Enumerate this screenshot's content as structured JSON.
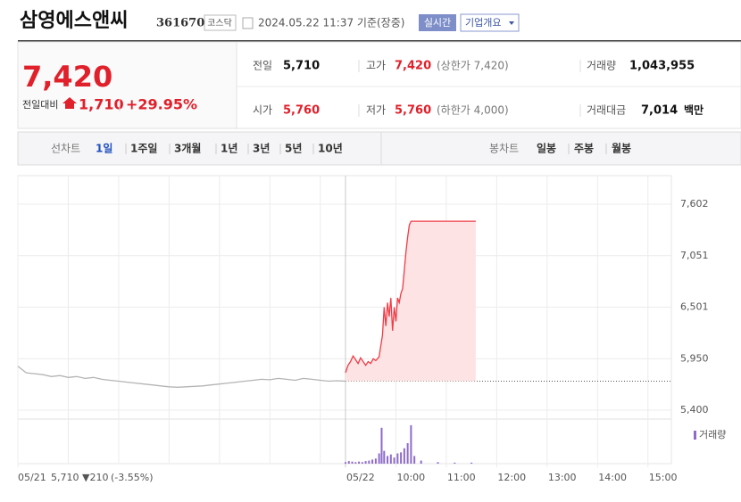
{
  "header": {
    "name": "삼영에스앤씨",
    "code": "361670",
    "market": "코스닥",
    "time": "2024.05.22 11:37 기준(장중)",
    "realtime": "실시간",
    "company": "기업개요"
  },
  "quote": {
    "price": "7,420",
    "change_label": "전일대비",
    "change": "1,710",
    "rate": "+29.95%",
    "items": [
      {
        "label": "전일",
        "value": "5,710"
      },
      {
        "label": "고가",
        "value": "7,420",
        "note": "(상한가 7,420)"
      },
      {
        "label": "거래량",
        "value": "1,043,955"
      },
      {
        "label": "시가",
        "value": "5,760"
      },
      {
        "label": "저가",
        "value": "5,760",
        "note": "(하한가 4,000)"
      },
      {
        "label": "거래대금",
        "value": "7,014",
        "unit": "백만"
      }
    ]
  },
  "tabs": {
    "line_label": "선차트",
    "line": [
      "1일",
      "1주일",
      "3개월",
      "1년",
      "3년",
      "5년",
      "10년"
    ],
    "candle_label": "봉차트",
    "candle": [
      "일봉",
      "주봉",
      "월봉"
    ]
  },
  "chart_data": {
    "type": "line",
    "xlim": [
      0,
      780
    ],
    "ylim": [
      5305,
      7907
    ],
    "yticks": [
      {
        "value": 7602,
        "label": "7,602"
      },
      {
        "value": 7051,
        "label": "7,051"
      },
      {
        "value": 6501,
        "label": "6,501"
      },
      {
        "value": 5950,
        "label": "5,950"
      },
      {
        "value": 5400,
        "label": "5,400"
      }
    ],
    "xticks": [
      {
        "value": 0,
        "label": "05/21"
      },
      {
        "value": 390,
        "label": "05/22"
      },
      {
        "value": 450,
        "label": "10:00"
      },
      {
        "value": 510,
        "label": "11:00"
      },
      {
        "value": 570,
        "label": "12:00"
      },
      {
        "value": 630,
        "label": "13:00"
      },
      {
        "value": 690,
        "label": "14:00"
      },
      {
        "value": 750,
        "label": "15:00"
      }
    ],
    "xgrid": [
      60,
      120,
      180,
      240,
      300,
      360
    ],
    "reference": 5710,
    "reference_color": "#555555",
    "series": [
      {
        "color": "#b4b4b4",
        "x": [
          0,
          10,
          20,
          30,
          40,
          50,
          60,
          70,
          80,
          90,
          100,
          110,
          120,
          130,
          140,
          150,
          160,
          170,
          180,
          190,
          200,
          210,
          220,
          230,
          240,
          250,
          260,
          270,
          280,
          290,
          300,
          310,
          320,
          330,
          340,
          350,
          360,
          370,
          380,
          390
        ],
        "values": [
          5870,
          5800,
          5790,
          5780,
          5760,
          5770,
          5750,
          5760,
          5740,
          5750,
          5730,
          5720,
          5710,
          5700,
          5690,
          5680,
          5670,
          5660,
          5650,
          5645,
          5650,
          5655,
          5660,
          5670,
          5680,
          5690,
          5700,
          5710,
          5720,
          5730,
          5725,
          5740,
          5730,
          5720,
          5740,
          5730,
          5720,
          5710,
          5715,
          5710
        ]
      },
      {
        "color": "#f03c46",
        "area_color": "#fde3e4",
        "x": [
          390,
          393,
          396,
          399,
          402,
          405,
          408,
          411,
          414,
          417,
          420,
          423,
          426,
          430,
          434,
          436,
          438,
          440,
          442,
          444,
          446,
          448,
          450,
          452,
          454,
          456,
          458,
          460,
          462,
          464,
          466,
          468,
          480,
          500,
          520,
          545
        ],
        "values": [
          5800,
          5880,
          5920,
          5980,
          5940,
          5900,
          5960,
          5920,
          5880,
          5920,
          5900,
          5950,
          5930,
          5970,
          6200,
          6500,
          6300,
          6550,
          6400,
          6600,
          6250,
          6500,
          6350,
          6600,
          6550,
          6650,
          6700,
          6900,
          7100,
          7250,
          7380,
          7420,
          7420,
          7420,
          7420,
          7420
        ]
      }
    ],
    "volume": {
      "name": "거래량",
      "color": "#8e6bc9",
      "ylim": [
        0,
        80
      ],
      "x": [
        390,
        394,
        398,
        402,
        406,
        410,
        414,
        418,
        422,
        426,
        430,
        433,
        436,
        440,
        444,
        448,
        452,
        456,
        460,
        464,
        468,
        472,
        480,
        500,
        520,
        540
      ],
      "values": [
        3,
        5,
        4,
        3,
        4,
        3,
        5,
        6,
        8,
        10,
        20,
        70,
        25,
        15,
        18,
        12,
        20,
        22,
        30,
        40,
        75,
        15,
        6,
        3,
        2,
        2
      ]
    },
    "footer": {
      "date": "05/21",
      "price": "5,710",
      "change": "▼210",
      "rate": "(-3.55%)"
    }
  }
}
